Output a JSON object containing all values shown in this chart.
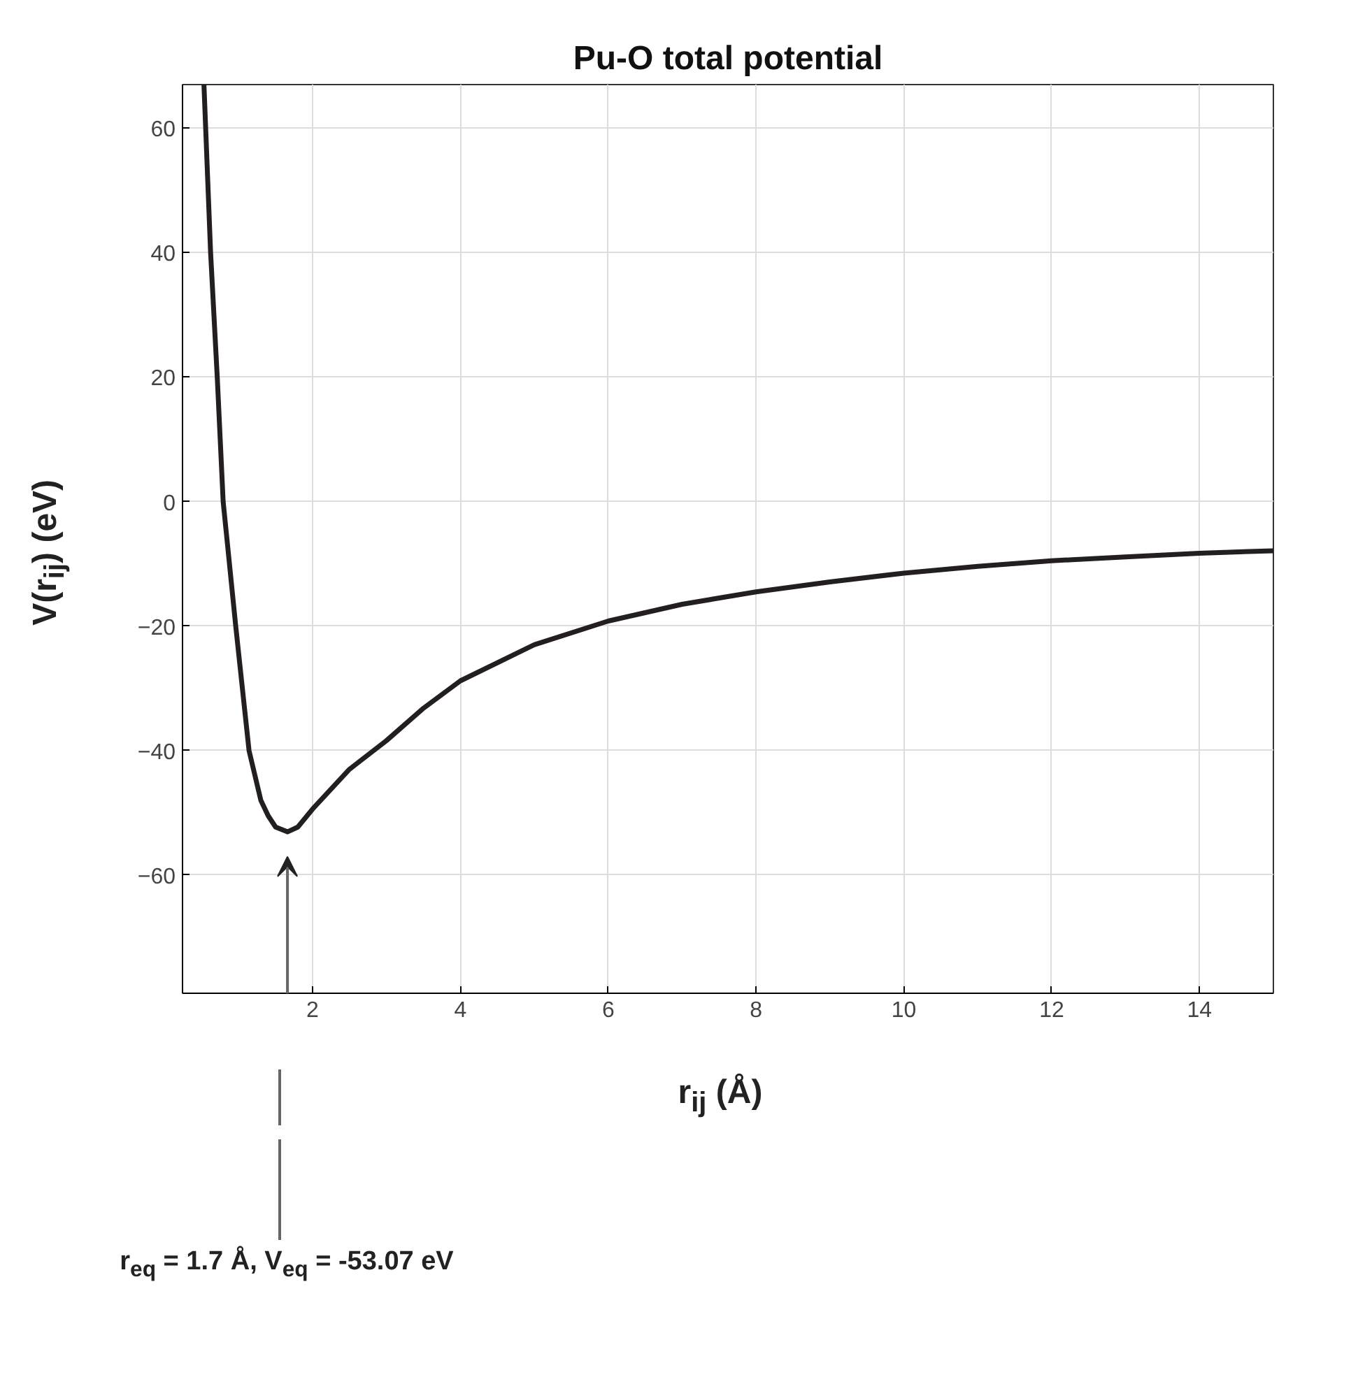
{
  "chart_data": {
    "type": "line",
    "title": "Pu-O total potential",
    "xlabel": "r$_{ij}$ (Å)",
    "ylabel": "V(r$_{ij}$) (eV)",
    "xlim": [
      0.24,
      15
    ],
    "ylim": [
      -79,
      67
    ],
    "xticks": [
      2,
      4,
      6,
      8,
      10,
      12,
      14
    ],
    "yticks": [
      -60,
      -40,
      -20,
      0,
      20,
      40,
      60
    ],
    "grid": true,
    "line_style": "solid",
    "marker": "none",
    "series": [
      {
        "color": "#231f20",
        "x": [
          0.53,
          0.62,
          0.71,
          0.79,
          0.96,
          1.14,
          1.3,
          1.4,
          1.5,
          1.66,
          1.8,
          2,
          2.5,
          3,
          3.5,
          4,
          5,
          6,
          7,
          8,
          9,
          10,
          11,
          12,
          13,
          14,
          15
        ],
        "values": [
          67,
          40,
          20,
          0,
          -20,
          -40,
          -48,
          -50.5,
          -52.3,
          -53.07,
          -52.3,
          -49.4,
          -43,
          -38.4,
          -33.2,
          -28.8,
          -23,
          -19.2,
          -16.5,
          -14.5,
          -12.9,
          -11.5,
          -10.4,
          -9.5,
          -8.9,
          -8.3,
          -7.9
        ]
      }
    ],
    "annotations": [
      "r$_{eq}$ = 1.7 Å, V$_{eq}$ = -53.07 eV"
    ]
  }
}
